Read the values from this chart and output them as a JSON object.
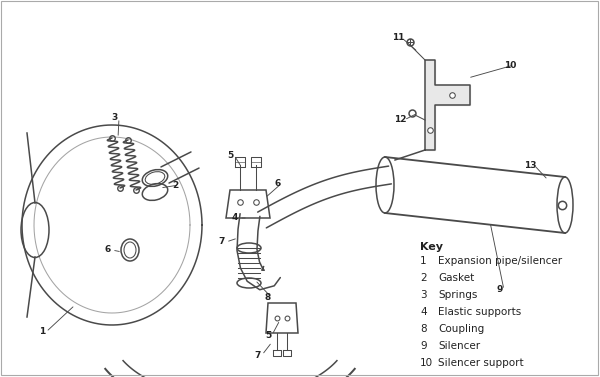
{
  "background_color": "#ffffff",
  "line_color": "#4a4a4a",
  "label_color": "#222222",
  "key_title": "Key",
  "key_items": [
    [
      1,
      "Expansion pipe/silencer"
    ],
    [
      2,
      "Gasket"
    ],
    [
      3,
      "Springs"
    ],
    [
      4,
      "Elastic supports"
    ],
    [
      8,
      "Coupling"
    ],
    [
      9,
      "Silencer"
    ],
    [
      10,
      "Silencer support"
    ]
  ],
  "fig_width": 6.0,
  "fig_height": 3.77,
  "dpi": 100
}
